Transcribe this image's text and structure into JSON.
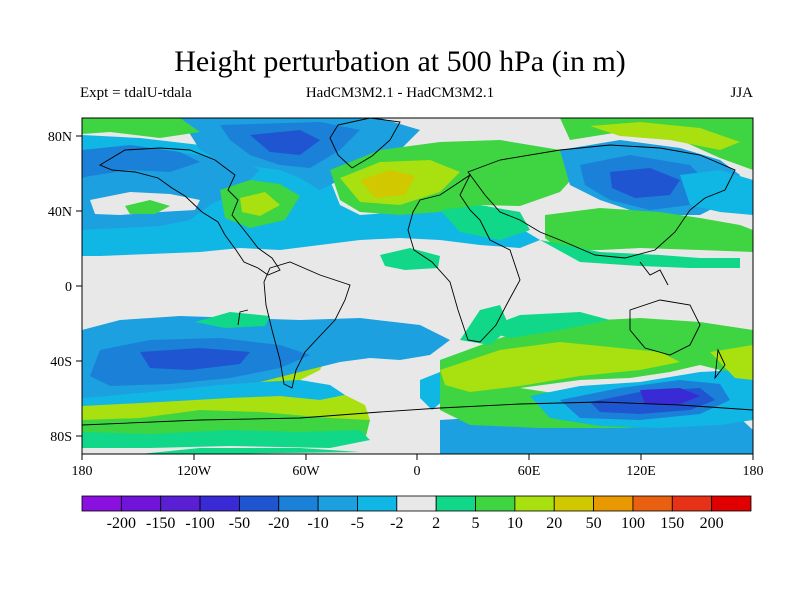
{
  "title": "Height perturbation at 500 hPa (in m)",
  "subtitle": {
    "left": "Expt = tdalU-tdala",
    "center": "HadCM3M2.1 - HadCM3M2.1",
    "right": "JJA"
  },
  "map": {
    "y_axis_labels": [
      "80N",
      "40N",
      "0",
      "40S",
      "80S"
    ],
    "x_axis_labels": [
      "180",
      "120W",
      "60W",
      "0",
      "60E",
      "120E",
      "180"
    ],
    "background_color": "#e8e8e8"
  },
  "colorbar": {
    "labels": [
      "-200",
      "-150",
      "-100",
      "-50",
      "-20",
      "-10",
      "-5",
      "-2",
      "2",
      "5",
      "10",
      "20",
      "50",
      "100",
      "150",
      "200"
    ],
    "colors": [
      "#8a10e0",
      "#6f14d8",
      "#5a1ed4",
      "#3a2ad6",
      "#1f55d0",
      "#1a80d8",
      "#1ca0e0",
      "#10b6e4",
      "#e8e8e8",
      "#10d888",
      "#3ed442",
      "#a8e010",
      "#d2c800",
      "#e89800",
      "#e86010",
      "#e83218",
      "#e00000"
    ]
  }
}
